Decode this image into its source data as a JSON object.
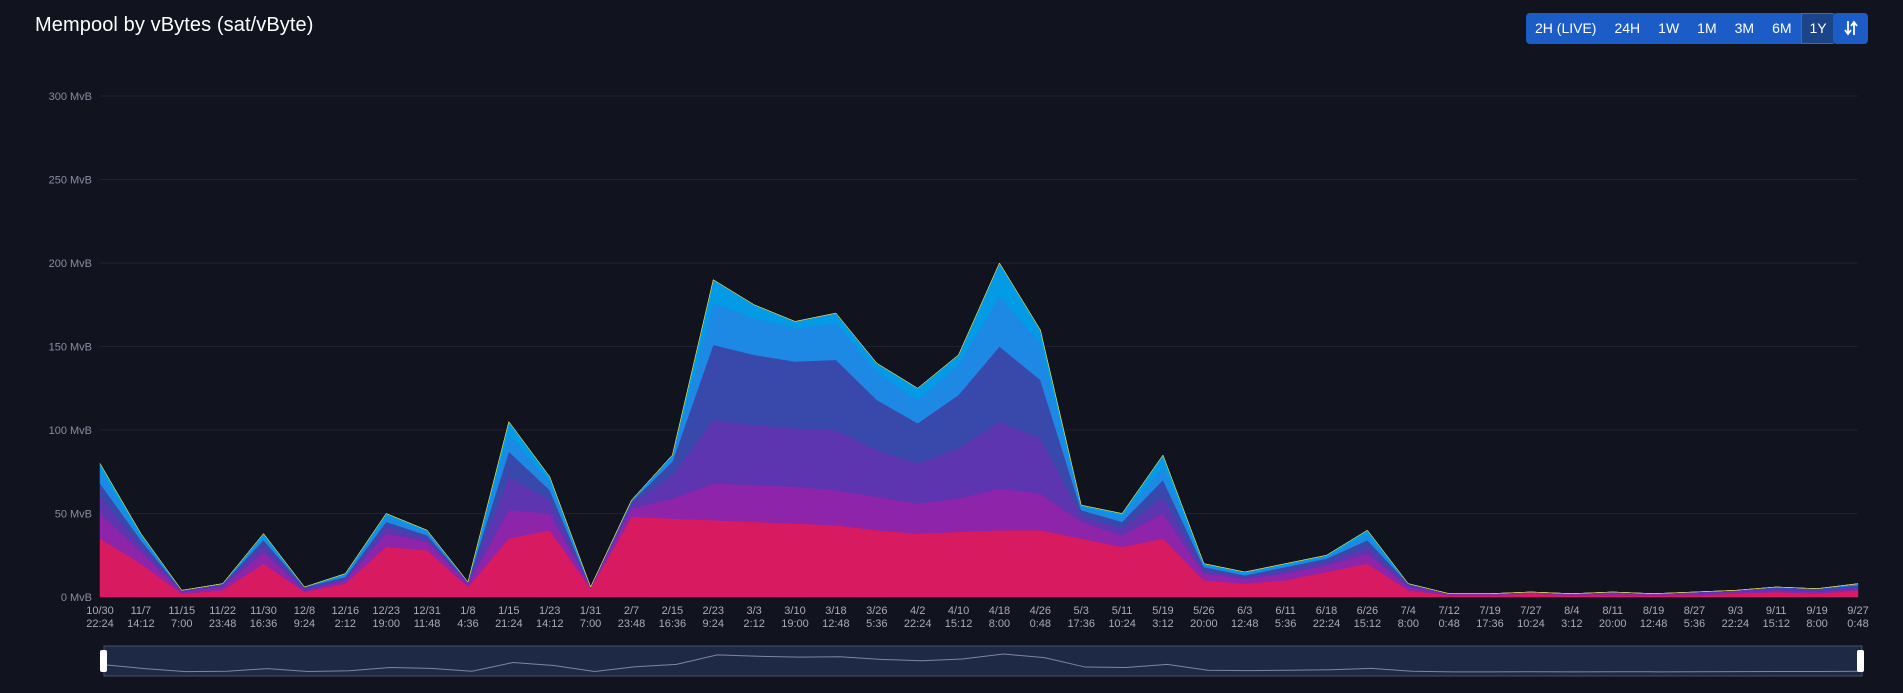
{
  "title": "Mempool by vBytes (sat/vByte)",
  "range_buttons": [
    {
      "label": "2H (LIVE)",
      "active": false
    },
    {
      "label": "24H",
      "active": false
    },
    {
      "label": "1W",
      "active": false
    },
    {
      "label": "1M",
      "active": false
    },
    {
      "label": "3M",
      "active": false
    },
    {
      "label": "6M",
      "active": false
    },
    {
      "label": "1Y",
      "active": true
    }
  ],
  "icons": {
    "toggle": "swap-vertical-icon",
    "zoom_left": "zoom-handle-left-icon",
    "zoom_right": "zoom-handle-right-icon"
  },
  "colors": {
    "background": "#11131f",
    "button": "#1c5cc7",
    "button_active": "#1b4489",
    "grid": "#1e2130",
    "layers": [
      "#d81b60",
      "#8e24aa",
      "#5e35b1",
      "#3949ab",
      "#1e88e5",
      "#039be5",
      "#00acc1",
      "#00897b",
      "#43a047",
      "#7cb342",
      "#c0ca33",
      "#fdd835",
      "#ffb300",
      "#fb8c00",
      "#f4511e",
      "#e53935",
      "#757575"
    ]
  },
  "chart_data": {
    "type": "area",
    "stacked": true,
    "title": "Mempool by vBytes (sat/vByte)",
    "y_unit": "MvB",
    "ylim": [
      0,
      300
    ],
    "y_ticks": [
      0,
      50,
      100,
      150,
      200,
      250,
      300
    ],
    "y_tick_labels": [
      "0 MvB",
      "50 MvB",
      "100 MvB",
      "150 MvB",
      "200 MvB",
      "250 MvB",
      "300 MvB"
    ],
    "grid": true,
    "x_tick_labels": [
      [
        "10/30",
        "22:24"
      ],
      [
        "11/7",
        "14:12"
      ],
      [
        "11/15",
        "7:00"
      ],
      [
        "11/22",
        "23:48"
      ],
      [
        "11/30",
        "16:36"
      ],
      [
        "12/8",
        "9:24"
      ],
      [
        "12/16",
        "2:12"
      ],
      [
        "12/23",
        "19:00"
      ],
      [
        "12/31",
        "11:48"
      ],
      [
        "1/8",
        "4:36"
      ],
      [
        "1/15",
        "21:24"
      ],
      [
        "1/23",
        "14:12"
      ],
      [
        "1/31",
        "7:00"
      ],
      [
        "2/7",
        "23:48"
      ],
      [
        "2/15",
        "16:36"
      ],
      [
        "2/23",
        "9:24"
      ],
      [
        "3/3",
        "2:12"
      ],
      [
        "3/10",
        "19:00"
      ],
      [
        "3/18",
        "12:48"
      ],
      [
        "3/26",
        "5:36"
      ],
      [
        "4/2",
        "22:24"
      ],
      [
        "4/10",
        "15:12"
      ],
      [
        "4/18",
        "8:00"
      ],
      [
        "4/26",
        "0:48"
      ],
      [
        "5/3",
        "17:36"
      ],
      [
        "5/11",
        "10:24"
      ],
      [
        "5/19",
        "3:12"
      ],
      [
        "5/26",
        "20:00"
      ],
      [
        "6/3",
        "12:48"
      ],
      [
        "6/11",
        "5:36"
      ],
      [
        "6/18",
        "22:24"
      ],
      [
        "6/26",
        "15:12"
      ],
      [
        "7/4",
        "8:00"
      ],
      [
        "7/12",
        "0:48"
      ],
      [
        "7/19",
        "17:36"
      ],
      [
        "7/27",
        "10:24"
      ],
      [
        "8/4",
        "3:12"
      ],
      [
        "8/11",
        "20:00"
      ],
      [
        "8/19",
        "12:48"
      ],
      [
        "8/27",
        "5:36"
      ],
      [
        "9/3",
        "22:24"
      ],
      [
        "9/11",
        "15:12"
      ],
      [
        "9/19",
        "8:00"
      ],
      [
        "9/27",
        "0:48"
      ]
    ],
    "x_index": [
      0,
      1,
      2,
      3,
      4,
      5,
      6,
      7,
      8,
      9,
      10,
      11,
      12,
      13,
      14,
      15,
      16,
      17,
      18,
      19,
      20,
      21,
      22,
      23,
      24,
      25,
      26,
      27,
      28,
      29,
      30,
      31,
      32,
      33,
      34,
      35,
      36,
      37,
      38,
      39,
      40,
      41,
      42,
      43
    ],
    "total_mvb": [
      80,
      38,
      4,
      8,
      38,
      6,
      14,
      50,
      40,
      9,
      105,
      72,
      6,
      58,
      85,
      190,
      175,
      165,
      170,
      140,
      125,
      145,
      200,
      160,
      55,
      50,
      85,
      20,
      15,
      20,
      25,
      40,
      8,
      2,
      2,
      3,
      2,
      3,
      2,
      3,
      4,
      6,
      5,
      8
    ],
    "series": [
      {
        "name": "",
        "values": [
          35,
          20,
          2,
          4,
          20,
          3,
          8,
          30,
          28,
          6,
          35,
          40,
          5,
          48,
          47,
          46,
          45,
          44,
          43,
          40,
          38,
          39,
          40,
          40,
          35,
          30,
          35,
          10,
          8,
          10,
          15,
          20,
          4,
          1,
          1,
          2,
          1,
          1,
          1,
          1,
          2,
          3,
          2,
          4
        ]
      },
      {
        "name": "",
        "values": [
          15,
          7,
          1,
          2,
          7,
          1,
          2,
          8,
          5,
          2,
          17,
          10,
          1,
          5,
          12,
          22,
          22,
          22,
          21,
          20,
          18,
          20,
          25,
          22,
          10,
          7,
          15,
          4,
          3,
          4,
          4,
          6,
          2,
          1,
          1,
          1,
          1,
          1,
          1,
          1,
          1,
          1,
          1,
          1
        ]
      },
      {
        "name": "",
        "values": [
          10,
          4,
          1,
          1,
          4,
          1,
          1,
          4,
          2,
          1,
          20,
          8,
          0,
          3,
          14,
          38,
          36,
          35,
          36,
          28,
          24,
          30,
          40,
          33,
          4,
          4,
          10,
          2,
          1,
          2,
          2,
          4,
          1,
          0,
          0,
          0,
          0,
          1,
          0,
          1,
          1,
          1,
          1,
          1
        ]
      },
      {
        "name": "",
        "values": [
          8,
          3,
          0,
          1,
          3,
          1,
          1,
          3,
          2,
          0,
          15,
          6,
          0,
          1,
          8,
          45,
          42,
          40,
          42,
          30,
          24,
          32,
          45,
          35,
          3,
          4,
          10,
          2,
          1,
          2,
          2,
          4,
          1,
          0,
          0,
          0,
          0,
          0,
          0,
          0,
          0,
          1,
          1,
          1
        ]
      },
      {
        "name": "",
        "values": [
          7,
          2,
          0,
          0,
          2,
          0,
          1,
          3,
          2,
          0,
          10,
          5,
          0,
          1,
          3,
          25,
          22,
          20,
          22,
          17,
          14,
          18,
          30,
          22,
          2,
          3,
          8,
          1,
          1,
          1,
          1,
          3,
          0,
          0,
          0,
          0,
          0,
          0,
          0,
          0,
          0,
          0,
          0,
          1
        ]
      },
      {
        "name": "",
        "values": [
          5,
          2,
          0,
          0,
          2,
          0,
          1,
          2,
          1,
          0,
          8,
          3,
          0,
          0,
          1,
          14,
          8,
          4,
          6,
          5,
          7,
          6,
          20,
          8,
          1,
          2,
          7,
          1,
          1,
          1,
          1,
          3,
          0,
          0,
          0,
          0,
          0,
          0,
          0,
          0,
          0,
          0,
          0,
          0
        ]
      }
    ]
  }
}
